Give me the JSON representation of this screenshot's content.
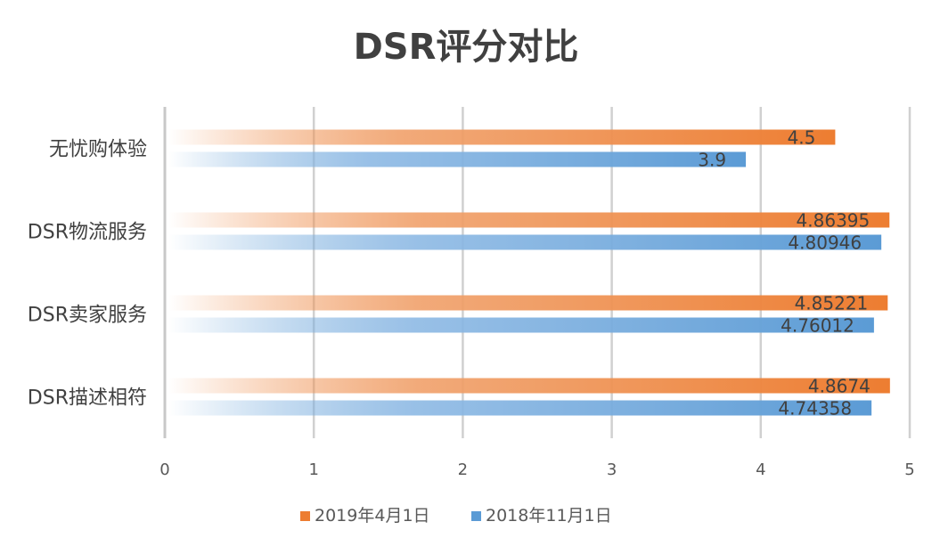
{
  "chart_data": {
    "type": "bar",
    "orientation": "horizontal",
    "title": "DSR评分对比",
    "categories": [
      "无忧购体验",
      "DSR物流服务",
      "DSR卖家服务",
      "DSR描述相符"
    ],
    "series": [
      {
        "name": "2019年4月1日",
        "values": [
          4.5,
          4.86395,
          4.85221,
          4.8674
        ],
        "labels": [
          "4.5",
          "4.86395",
          "4.85221",
          "4.8674"
        ],
        "color": "#ED7D31"
      },
      {
        "name": "2018年11月1日",
        "values": [
          3.9,
          4.80946,
          4.76012,
          4.74358
        ],
        "labels": [
          "3.9",
          "4.80946",
          "4.76012",
          "4.74358"
        ],
        "color": "#5B9BD5"
      }
    ],
    "xlim": [
      0,
      5
    ],
    "xticks": [
      "0",
      "1",
      "2",
      "3",
      "4",
      "5"
    ],
    "grid": true,
    "legend": "bottom"
  }
}
